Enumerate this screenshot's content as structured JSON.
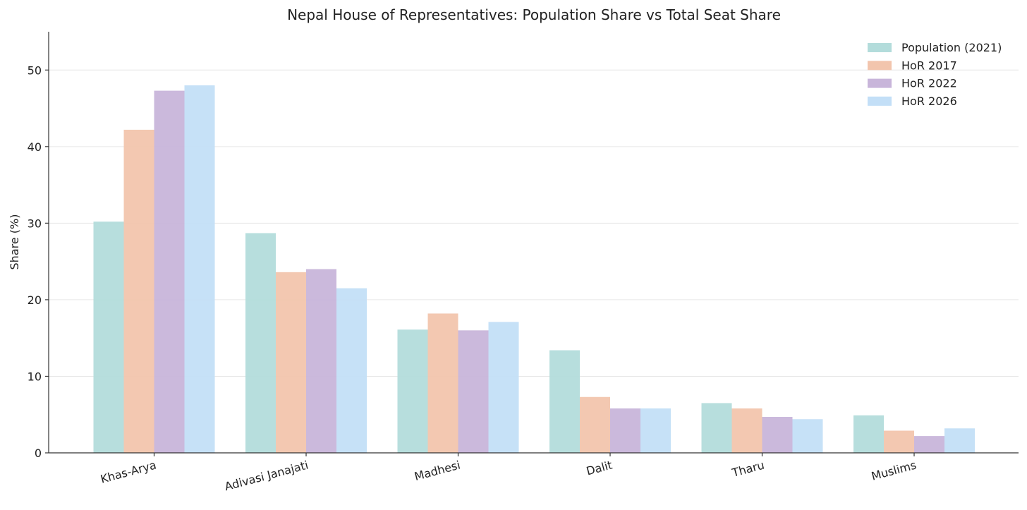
{
  "chart_data": {
    "type": "bar",
    "title": "Nepal House of Representatives: Population Share vs Total Seat Share",
    "xlabel": "",
    "ylabel": "Share (%)",
    "ylim": [
      0,
      55
    ],
    "yticks": [
      0,
      10,
      20,
      30,
      40,
      50
    ],
    "grid": "y",
    "legend_position": "top-right",
    "categories": [
      "Khas-Arya",
      "Adivasi Janajati",
      "Madhesi",
      "Dalit",
      "Tharu",
      "Muslims"
    ],
    "series": [
      {
        "name": "Population (2021)",
        "color": "#b3dcdb",
        "values": [
          30.2,
          28.7,
          16.1,
          13.4,
          6.5,
          4.9
        ]
      },
      {
        "name": "HoR 2017",
        "color": "#f2c5ad",
        "values": [
          42.2,
          23.6,
          18.2,
          7.3,
          5.8,
          2.9
        ]
      },
      {
        "name": "HoR 2022",
        "color": "#c8b5da",
        "values": [
          47.3,
          24.0,
          16.0,
          5.8,
          4.7,
          2.2
        ]
      },
      {
        "name": "HoR 2026",
        "color": "#c3dff7",
        "values": [
          48.0,
          21.5,
          17.1,
          5.8,
          4.4,
          3.2
        ]
      }
    ]
  }
}
